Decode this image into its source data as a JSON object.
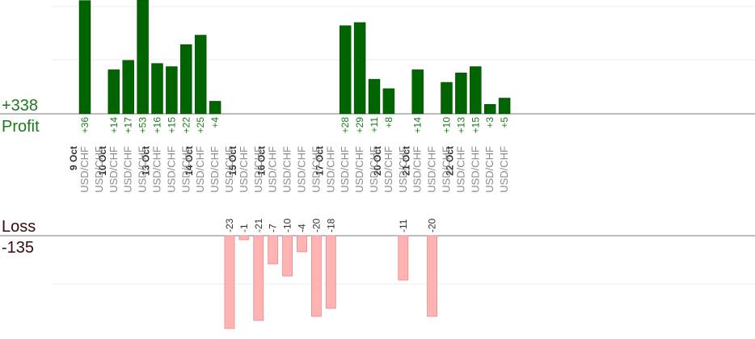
{
  "chart_data": {
    "type": "bar",
    "profit": {
      "label": "Profit",
      "total": "+338",
      "color": "#006400"
    },
    "loss": {
      "label": "Loss",
      "total": "-135",
      "color": "#ffb3b3"
    },
    "dates": [
      "9 Oct",
      "10 Oct",
      "13 Oct",
      "14 Oct",
      "15 Oct",
      "16 Oct",
      "17 Oct",
      "20 Oct",
      "21 Oct",
      "22 Oct"
    ],
    "trades": [
      {
        "date": "9 Oct",
        "pair": "USD/CHF",
        "value": 36
      },
      {
        "date": "9 Oct",
        "pair": "USD/CHF",
        "value": null
      },
      {
        "date": "10 Oct",
        "pair": "USD/CHF",
        "value": 14
      },
      {
        "date": "10 Oct",
        "pair": "USD/CHF",
        "value": 17
      },
      {
        "date": "10 Oct",
        "pair": "USD/CHF",
        "value": 53
      },
      {
        "date": "13 Oct",
        "pair": "USD/CHF",
        "value": 16
      },
      {
        "date": "13 Oct",
        "pair": "USD/CHF",
        "value": 15
      },
      {
        "date": "13 Oct",
        "pair": "USD/CHF",
        "value": 22
      },
      {
        "date": "14 Oct",
        "pair": "USD/CHF",
        "value": 25
      },
      {
        "date": "14 Oct",
        "pair": "USD/CHF",
        "value": 4
      },
      {
        "date": "14 Oct",
        "pair": "USD/CHF",
        "value": -23
      },
      {
        "date": "15 Oct",
        "pair": "USD/CHF",
        "value": -1
      },
      {
        "date": "15 Oct",
        "pair": "USD/CHF",
        "value": -21
      },
      {
        "date": "16 Oct",
        "pair": "USD/CHF",
        "value": -7
      },
      {
        "date": "16 Oct",
        "pair": "USD/CHF",
        "value": -10
      },
      {
        "date": "16 Oct",
        "pair": "USD/CHF",
        "value": -4
      },
      {
        "date": "16 Oct",
        "pair": "USD/CHF",
        "value": -20
      },
      {
        "date": "17 Oct",
        "pair": "USD/CHF",
        "value": -18
      },
      {
        "date": "17 Oct",
        "pair": "USD/CHF",
        "value": 28
      },
      {
        "date": "17 Oct",
        "pair": "USD/CHF",
        "value": 29
      },
      {
        "date": "17 Oct",
        "pair": "USD/CHF",
        "value": 11
      },
      {
        "date": "20 Oct",
        "pair": "USD/CHF",
        "value": 8
      },
      {
        "date": "20 Oct",
        "pair": "USD/CHF",
        "value": -11
      },
      {
        "date": "21 Oct",
        "pair": "USD/CHF",
        "value": 14
      },
      {
        "date": "21 Oct",
        "pair": "USD/CHF",
        "value": -20
      },
      {
        "date": "21 Oct",
        "pair": "USD/CHF",
        "value": 10
      },
      {
        "date": "22 Oct",
        "pair": "USD/CHF",
        "value": 13
      },
      {
        "date": "22 Oct",
        "pair": "USD/CHF",
        "value": 15
      },
      {
        "date": "22 Oct",
        "pair": "USD/CHF",
        "value": 3
      },
      {
        "date": "22 Oct",
        "pair": "USD/CHF",
        "value": 5
      }
    ],
    "grid": true
  }
}
